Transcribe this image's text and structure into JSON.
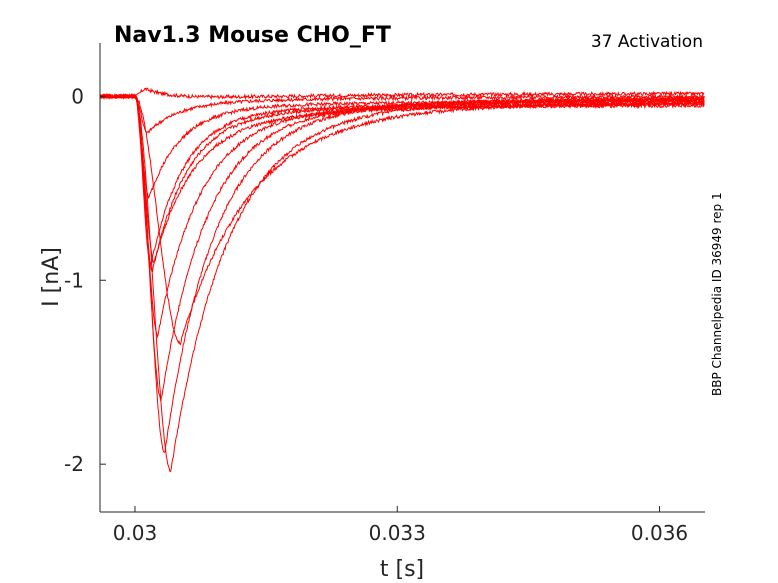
{
  "chart_data": {
    "type": "line",
    "title": "Nav1.3  Mouse  CHO_FT",
    "subtitle": "37  Activation",
    "side_note": "BBP Channelpedia ID 36949 rep 1",
    "xlabel": "t [s]",
    "ylabel": "I [nA]",
    "xlim": [
      0.0296,
      0.03652
    ],
    "ylim": [
      -2.26,
      0.29
    ],
    "xticks": [
      {
        "value": 0.03,
        "label": "0.03"
      },
      {
        "value": 0.033,
        "label": "0.033"
      },
      {
        "value": 0.036,
        "label": "0.036"
      }
    ],
    "yticks": [
      {
        "value": 0,
        "label": "0"
      },
      {
        "value": -1,
        "label": "-1"
      },
      {
        "value": -2,
        "label": "-2"
      }
    ],
    "grid": false,
    "legend": "none",
    "color": "#ff0000",
    "series": [
      {
        "peak_t": 0.03012,
        "peak_i": 0.04,
        "ss_i": 0.02
      },
      {
        "peak_t": 0.03014,
        "peak_i": -0.2,
        "ss_i": 0.0
      },
      {
        "peak_t": 0.03016,
        "peak_i": -0.55,
        "ss_i": -0.03
      },
      {
        "peak_t": 0.03018,
        "peak_i": -0.92,
        "ss_i": -0.05
      },
      {
        "peak_t": 0.0302,
        "peak_i": -0.95,
        "ss_i": -0.06
      },
      {
        "peak_t": 0.03022,
        "peak_i": -0.9,
        "ss_i": -0.04
      },
      {
        "peak_t": 0.03026,
        "peak_i": -1.3,
        "ss_i": -0.02
      },
      {
        "peak_t": 0.0303,
        "peak_i": -1.65,
        "ss_i": -0.01
      },
      {
        "peak_t": 0.03034,
        "peak_i": -1.94,
        "ss_i": 0.0
      },
      {
        "peak_t": 0.03041,
        "peak_i": -2.04,
        "ss_i": -0.01
      },
      {
        "peak_t": 0.03052,
        "peak_i": -1.34,
        "ss_i": -0.03
      }
    ]
  }
}
